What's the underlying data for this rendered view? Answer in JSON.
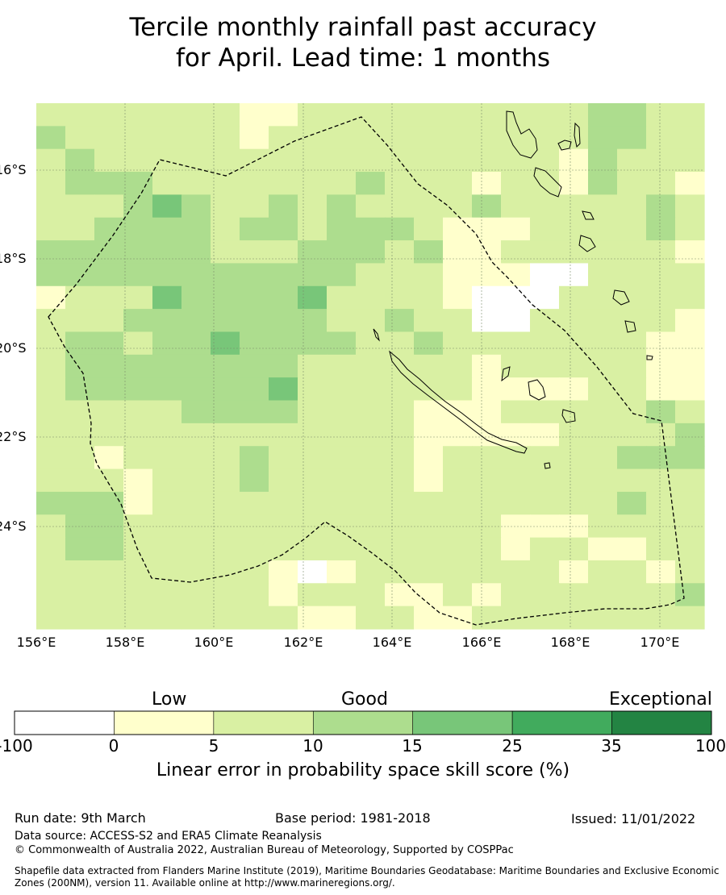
{
  "title_line1": "Tercile monthly rainfall past accuracy",
  "title_line2": "for April. Lead time: 1 months",
  "map": {
    "lat_labels": [
      "16°S",
      "18°S",
      "20°S",
      "22°S",
      "24°S"
    ],
    "lon_labels": [
      "156°E",
      "158°E",
      "160°E",
      "162°E",
      "164°E",
      "166°E",
      "168°E",
      "170°E"
    ],
    "grid_rows": [
      "BBBBBBBAABBBBBBBBBBCCBB",
      "CBBBBBBABBBBBBBBBBBCCBB",
      "BCBBBBBBBBBBBBBBBBACBBB",
      "BCCCBBBBBBBCBBBABBACBBA",
      "BBBCDCBBCBCBBBBCBBBBBCB",
      "BBCCCCBCCBCCCBAAABBBBCB",
      "CCCCCCBBBCCCBCAABBBBBBA",
      "CCCCCCCCCCCBBBAAAZZBBBB",
      "ABBBDCCCCDBBBBAZZZBBBBB",
      "BBBCCCCCCCBBCBBZZBBBBBA",
      "BCCBCCDCCCCBBCBBBBBBBAA",
      "BCCCCCCCCBBBBBBABBBBBAA",
      "BCCCCCCCDBBBBBBAAAABBAA",
      "BBBBBCCCCBBBBAAABBBBBCB",
      "BBBBBBBBBBBBBAAAAABBBBC",
      "BBABBBBCBBBBBABBBBBBCCC",
      "BBBABBBCBBBBBABBBBBBBBB",
      "CCCABBBBBBBBBBBBBBBBCBB",
      "BCCBBBBBBBBBBBBBAAABBBB",
      "BCCBBBBBBBBBBBBBABBAABB",
      "BBBBBBBBAZABBBBBBBABBAB",
      "BBBBBBBBABBBAABABBBBBBC",
      "BBBBBBBBBAABBAABBBBBBBB"
    ]
  },
  "legend": {
    "categories": [
      "Low",
      "Good",
      "Exceptional"
    ],
    "ticks": [
      "-100",
      "0",
      "5",
      "10",
      "15",
      "25",
      "35",
      "100"
    ],
    "colors": [
      "#ffffff",
      "#ffffcc",
      "#d9f0a3",
      "#addd8e",
      "#78c679",
      "#41ab5d",
      "#238443"
    ],
    "title": "Linear error in probability space skill score (%)"
  },
  "footer": {
    "run_date": "Run date: 9th March",
    "base_period": "Base period: 1981-2018",
    "issued": "Issued: 11/01/2022",
    "data_source": "Data source: ACCESS-S2 and ERA5 Climate Reanalysis",
    "copyright": "© Commonwealth of Australia 2022, Australian Bureau of Meteorology, Supported by COSPPac",
    "shapefile_line1": "Shapefile data extracted from Flanders Marine Institute (2019), Maritime Boundaries Geodatabase: Maritime Boundaries and Exclusive Economic",
    "shapefile_line2": "Zones (200NM), version 11. Available online at http://www.marineregions.org/."
  }
}
